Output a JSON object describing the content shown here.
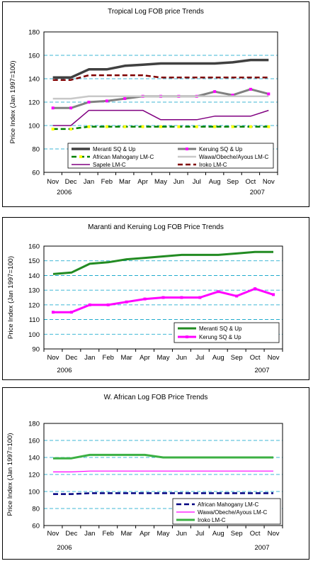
{
  "chart_data": [
    {
      "type": "line",
      "title": "Tropical Log FOB price Trends",
      "ylabel": "Price Index (Jan 1997=100)",
      "ylim": [
        60,
        180
      ],
      "yticks": [
        60,
        80,
        100,
        120,
        140,
        160,
        180
      ],
      "grid": "horizontal-dashed",
      "legend_position": "bottom-inside",
      "categories": [
        "Nov",
        "Dec",
        "Jan",
        "Feb",
        "Mar",
        "Apr",
        "May",
        "Jun",
        "Jul",
        "Aug",
        "Sep",
        "Oct",
        "Nov"
      ],
      "year_labels": [
        "2006",
        "2007"
      ],
      "series": [
        {
          "name": "Meranti SQ & Up",
          "color": "#404040",
          "width": 3.5,
          "dash": "",
          "marker": "",
          "values": [
            141,
            141,
            148,
            148,
            151,
            152,
            153,
            153,
            153,
            153,
            154,
            156,
            156
          ]
        },
        {
          "name": "Keruing SQ & Up",
          "color": "#808080",
          "width": 3,
          "dash": "",
          "marker": "#ff00ff",
          "values": [
            115,
            115,
            120,
            121,
            123,
            125,
            125,
            125,
            125,
            129,
            126,
            131,
            127
          ]
        },
        {
          "name": "African Mahogany LM-C",
          "color": "#008000",
          "width": 2.5,
          "dash": "7,4",
          "marker": "#ffff00",
          "values": [
            97,
            97,
            99,
            99,
            99,
            99,
            99,
            99,
            99,
            99,
            99,
            99,
            99
          ]
        },
        {
          "name": "Wawa/Obeche/Ayous LM-C",
          "color": "#c8c8c8",
          "width": 2.5,
          "dash": "",
          "marker": "",
          "values": [
            123,
            123,
            125,
            125,
            125,
            125,
            125,
            125,
            125,
            125,
            125,
            125,
            125
          ]
        },
        {
          "name": "Sapele LM-C",
          "color": "#800080",
          "width": 1.5,
          "dash": "",
          "marker": "",
          "values": [
            100,
            100,
            113,
            113,
            113,
            113,
            105,
            105,
            105,
            108,
            108,
            108,
            113
          ]
        },
        {
          "name": "Iroko LM-C",
          "color": "#800000",
          "width": 2.5,
          "dash": "7,4",
          "marker": "",
          "values": [
            139,
            139,
            143,
            143,
            143,
            143,
            141,
            141,
            141,
            141,
            141,
            141,
            141
          ]
        }
      ]
    },
    {
      "type": "line",
      "title": "Maranti and Keruing Log FOB Price Trends",
      "ylabel": "Price Index (Jan 1997=100)",
      "ylim": [
        90,
        160
      ],
      "yticks": [
        90,
        100,
        110,
        120,
        130,
        140,
        150,
        160
      ],
      "grid": "horizontal-dashed",
      "legend_position": "bottom-right-inside",
      "categories": [
        "Nov",
        "Dec",
        "Jan",
        "Feb",
        "Mar",
        "Apr",
        "May",
        "Jun",
        "Jul",
        "Aug",
        "Sep",
        "Oct",
        "Nov"
      ],
      "year_labels": [
        "2006",
        "2007"
      ],
      "series": [
        {
          "name": "Meranti SQ & Up",
          "color": "#228b22",
          "width": 3,
          "dash": "",
          "marker": "",
          "values": [
            141,
            142,
            148,
            149,
            151,
            152,
            153,
            154,
            154,
            154,
            155,
            156,
            156
          ]
        },
        {
          "name": "Kerung SQ & Up",
          "color": "#ff00ff",
          "width": 3,
          "dash": "",
          "marker": "#ff00ff",
          "values": [
            115,
            115,
            120,
            120,
            122,
            124,
            125,
            125,
            125,
            129,
            126,
            131,
            127
          ]
        }
      ]
    },
    {
      "type": "line",
      "title": "W. African Log FOB Price Trends",
      "ylabel": "Price Index (Jan 1997=100)",
      "ylim": [
        60,
        180
      ],
      "yticks": [
        60,
        80,
        100,
        120,
        140,
        160,
        180
      ],
      "grid": "horizontal-dashed",
      "legend_position": "bottom-right-inside",
      "categories": [
        "Nov",
        "Dec",
        "Jan",
        "Feb",
        "Mar",
        "Apr",
        "May",
        "Jun",
        "Jul",
        "Aug",
        "Sep",
        "Oct",
        "Nov"
      ],
      "year_labels": [
        "2006",
        "2007"
      ],
      "series": [
        {
          "name": "African Mahogany LM-C",
          "color": "#000080",
          "width": 2.5,
          "dash": "7,4",
          "marker": "",
          "values": [
            97,
            97,
            98,
            98,
            98,
            98,
            98,
            98,
            98,
            98,
            98,
            98,
            98
          ]
        },
        {
          "name": "Wawa/Obeche/Ayous LM-C",
          "color": "#ff00ff",
          "width": 1.2,
          "dash": "",
          "marker": "",
          "values": [
            123,
            123,
            124,
            124,
            124,
            124,
            124,
            124,
            124,
            124,
            124,
            124,
            124
          ]
        },
        {
          "name": "Iroko LM-C",
          "color": "#3cb043",
          "width": 3,
          "dash": "",
          "marker": "",
          "values": [
            139,
            139,
            143,
            143,
            143,
            143,
            140,
            140,
            140,
            140,
            140,
            140,
            140
          ]
        }
      ]
    }
  ]
}
